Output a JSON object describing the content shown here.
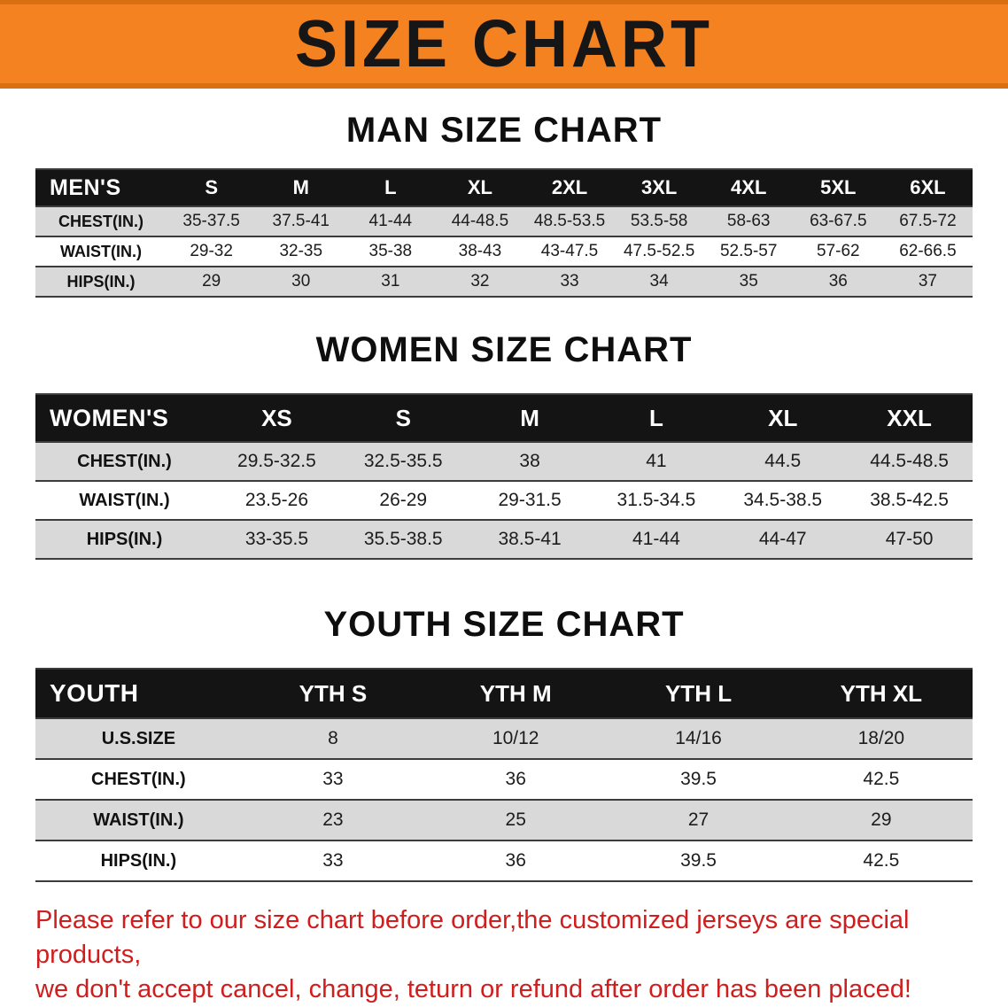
{
  "banner": {
    "title": "SIZE CHART"
  },
  "chart_data": [
    {
      "type": "table",
      "title": "MAN SIZE CHART",
      "columns": [
        "MEN'S",
        "S",
        "M",
        "L",
        "XL",
        "2XL",
        "3XL",
        "4XL",
        "5XL",
        "6XL"
      ],
      "rows": [
        [
          "CHEST(IN.)",
          "35-37.5",
          "37.5-41",
          "41-44",
          "44-48.5",
          "48.5-53.5",
          "53.5-58",
          "58-63",
          "63-67.5",
          "67.5-72"
        ],
        [
          "WAIST(IN.)",
          "29-32",
          "32-35",
          "35-38",
          "38-43",
          "43-47.5",
          "47.5-52.5",
          "52.5-57",
          "57-62",
          "62-66.5"
        ],
        [
          "HIPS(IN.)",
          "29",
          "30",
          "31",
          "32",
          "33",
          "34",
          "35",
          "36",
          "37"
        ]
      ]
    },
    {
      "type": "table",
      "title": "WOMEN SIZE CHART",
      "columns": [
        "WOMEN'S",
        "XS",
        "S",
        "M",
        "L",
        "XL",
        "XXL"
      ],
      "rows": [
        [
          "CHEST(IN.)",
          "29.5-32.5",
          "32.5-35.5",
          "38",
          "41",
          "44.5",
          "44.5-48.5"
        ],
        [
          "WAIST(IN.)",
          "23.5-26",
          "26-29",
          "29-31.5",
          "31.5-34.5",
          "34.5-38.5",
          "38.5-42.5"
        ],
        [
          "HIPS(IN.)",
          "33-35.5",
          "35.5-38.5",
          "38.5-41",
          "41-44",
          "44-47",
          "47-50"
        ]
      ]
    },
    {
      "type": "table",
      "title": "YOUTH SIZE CHART",
      "columns": [
        "YOUTH",
        "YTH S",
        "YTH M",
        "YTH L",
        "YTH XL"
      ],
      "rows": [
        [
          "U.S.SIZE",
          "8",
          "10/12",
          "14/16",
          "18/20"
        ],
        [
          "CHEST(IN.)",
          "33",
          "36",
          "39.5",
          "42.5"
        ],
        [
          "WAIST(IN.)",
          "23",
          "25",
          "27",
          "29"
        ],
        [
          "HIPS(IN.)",
          "33",
          "36",
          "39.5",
          "42.5"
        ]
      ]
    }
  ],
  "disclaimer": {
    "line1": "Please refer to our size chart before order,the customized jerseys are special products,",
    "line2": "we don't accept cancel, change, teturn or refund after order has been placed!"
  },
  "colors": {
    "banner_orange": "#F58220",
    "banner_edge": "#D96F10",
    "table_header_black": "#141414",
    "row_gray": "#D9D9D9",
    "disclaimer_red": "#D01D1D"
  }
}
